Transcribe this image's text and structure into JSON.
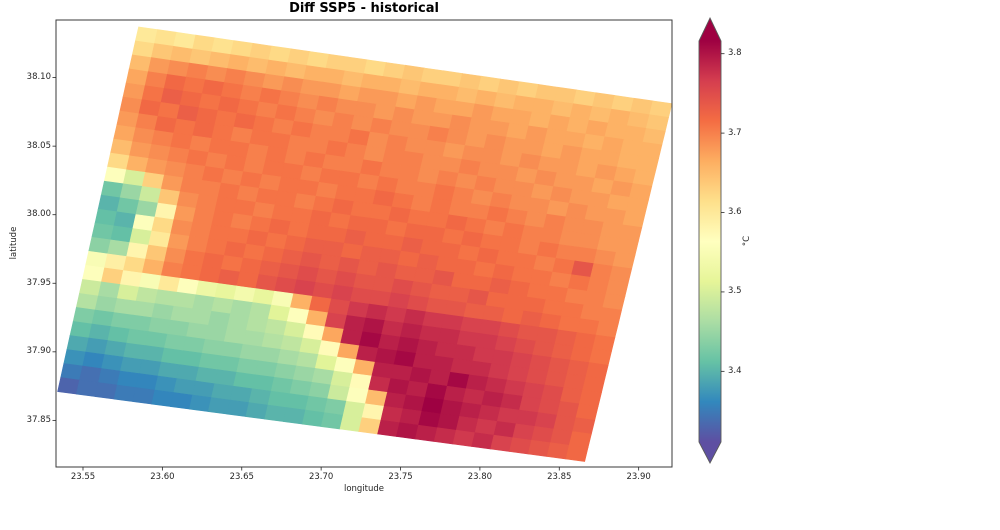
{
  "title": "Diff SSP5 - historical",
  "axes": {
    "xlabel": "longitude",
    "ylabel": "latitude",
    "x_tick_labels": [
      "23.55",
      "23.60",
      "23.65",
      "23.70",
      "23.75",
      "23.80",
      "23.85",
      "23.90"
    ],
    "y_tick_labels": [
      "38.10",
      "38.05",
      "38.00",
      "37.95",
      "37.90",
      "37.85"
    ]
  },
  "chart_data": {
    "type": "heatmap",
    "title": "Diff SSP5 - historical",
    "xlabel": "longitude",
    "ylabel": "latitude",
    "xlim": [
      23.533,
      23.921
    ],
    "ylim": [
      37.816,
      38.142
    ],
    "x_ticks": [
      23.55,
      23.6,
      23.65,
      23.7,
      23.75,
      23.8,
      23.85,
      23.9
    ],
    "y_ticks": [
      38.1,
      38.05,
      38.0,
      37.95,
      37.9,
      37.85
    ],
    "grid_on": false,
    "colorbar": {
      "label": "°C",
      "ticks": [
        3.8,
        3.7,
        3.6,
        3.5,
        3.4
      ],
      "vmin": 3.311,
      "vmax": 3.816,
      "extend": "both",
      "colormap_name": "Spectral_r",
      "colors": [
        "#5e4fa2",
        "#3288bd",
        "#66c2a5",
        "#abdda4",
        "#e6f598",
        "#ffffbf",
        "#fee08b",
        "#fdae61",
        "#f46d43",
        "#d53e4f",
        "#9e0142"
      ]
    },
    "grid": {
      "rows": 26,
      "cols": 28,
      "corners_lonlat": {
        "top_left": [
          23.585,
          38.137
        ],
        "top_right": [
          23.921,
          38.081
        ],
        "bottom_right": [
          23.866,
          37.82
        ],
        "bottom_left": [
          23.534,
          37.871
        ]
      },
      "values_degC": [
        [
          3.6,
          3.61,
          3.6,
          3.62,
          3.61,
          3.62,
          3.63,
          3.62,
          3.63,
          3.62,
          3.63,
          3.63,
          3.62,
          3.63,
          3.64,
          3.63,
          3.63,
          3.64,
          3.63,
          3.64,
          3.63,
          3.64,
          3.64,
          3.63,
          3.64,
          3.63,
          3.64,
          3.63
        ],
        [
          3.62,
          3.64,
          3.65,
          3.64,
          3.65,
          3.66,
          3.65,
          3.66,
          3.65,
          3.66,
          3.66,
          3.65,
          3.66,
          3.66,
          3.65,
          3.66,
          3.66,
          3.65,
          3.66,
          3.65,
          3.66,
          3.66,
          3.65,
          3.66,
          3.65,
          3.66,
          3.65,
          3.64
        ],
        [
          3.65,
          3.68,
          3.69,
          3.7,
          3.69,
          3.7,
          3.69,
          3.68,
          3.69,
          3.68,
          3.68,
          3.67,
          3.68,
          3.68,
          3.67,
          3.68,
          3.67,
          3.67,
          3.68,
          3.67,
          3.67,
          3.66,
          3.67,
          3.66,
          3.67,
          3.66,
          3.66,
          3.65
        ],
        [
          3.67,
          3.7,
          3.72,
          3.71,
          3.72,
          3.71,
          3.7,
          3.71,
          3.7,
          3.69,
          3.7,
          3.69,
          3.69,
          3.68,
          3.69,
          3.68,
          3.68,
          3.69,
          3.68,
          3.68,
          3.67,
          3.68,
          3.67,
          3.67,
          3.66,
          3.67,
          3.66,
          3.66
        ],
        [
          3.68,
          3.71,
          3.73,
          3.72,
          3.71,
          3.72,
          3.71,
          3.7,
          3.71,
          3.7,
          3.69,
          3.7,
          3.69,
          3.7,
          3.69,
          3.69,
          3.7,
          3.69,
          3.68,
          3.69,
          3.68,
          3.68,
          3.67,
          3.68,
          3.67,
          3.67,
          3.66,
          3.66
        ],
        [
          3.69,
          3.72,
          3.71,
          3.73,
          3.72,
          3.71,
          3.72,
          3.71,
          3.7,
          3.71,
          3.7,
          3.7,
          3.71,
          3.69,
          3.7,
          3.69,
          3.69,
          3.68,
          3.69,
          3.69,
          3.68,
          3.69,
          3.68,
          3.68,
          3.67,
          3.68,
          3.67,
          3.66
        ],
        [
          3.68,
          3.7,
          3.72,
          3.71,
          3.72,
          3.71,
          3.7,
          3.71,
          3.71,
          3.7,
          3.7,
          3.71,
          3.7,
          3.69,
          3.7,
          3.7,
          3.69,
          3.69,
          3.7,
          3.69,
          3.69,
          3.68,
          3.69,
          3.68,
          3.68,
          3.67,
          3.68,
          3.67
        ],
        [
          3.67,
          3.69,
          3.7,
          3.71,
          3.7,
          3.71,
          3.71,
          3.7,
          3.71,
          3.7,
          3.71,
          3.7,
          3.7,
          3.71,
          3.7,
          3.7,
          3.69,
          3.7,
          3.69,
          3.7,
          3.69,
          3.69,
          3.68,
          3.69,
          3.68,
          3.68,
          3.67,
          3.67
        ],
        [
          3.65,
          3.68,
          3.69,
          3.7,
          3.71,
          3.7,
          3.71,
          3.7,
          3.71,
          3.71,
          3.7,
          3.71,
          3.71,
          3.7,
          3.71,
          3.7,
          3.7,
          3.71,
          3.7,
          3.69,
          3.7,
          3.69,
          3.69,
          3.68,
          3.69,
          3.68,
          3.68,
          3.67
        ],
        [
          3.62,
          3.66,
          3.68,
          3.69,
          3.7,
          3.71,
          3.7,
          3.71,
          3.7,
          3.71,
          3.71,
          3.7,
          3.71,
          3.71,
          3.72,
          3.71,
          3.7,
          3.71,
          3.7,
          3.7,
          3.71,
          3.7,
          3.69,
          3.7,
          3.69,
          3.69,
          3.68,
          3.68
        ],
        [
          3.56,
          3.5,
          3.63,
          3.68,
          3.7,
          3.7,
          3.71,
          3.7,
          3.71,
          3.71,
          3.7,
          3.71,
          3.72,
          3.71,
          3.71,
          3.72,
          3.71,
          3.71,
          3.72,
          3.71,
          3.7,
          3.71,
          3.7,
          3.7,
          3.69,
          3.69,
          3.68,
          3.68
        ],
        [
          3.42,
          3.45,
          3.49,
          3.64,
          3.69,
          3.7,
          3.71,
          3.71,
          3.7,
          3.71,
          3.71,
          3.72,
          3.71,
          3.72,
          3.72,
          3.71,
          3.72,
          3.72,
          3.71,
          3.72,
          3.71,
          3.71,
          3.7,
          3.71,
          3.7,
          3.7,
          3.69,
          3.68
        ],
        [
          3.4,
          3.42,
          3.45,
          3.58,
          3.68,
          3.7,
          3.71,
          3.7,
          3.71,
          3.72,
          3.71,
          3.72,
          3.72,
          3.73,
          3.72,
          3.72,
          3.73,
          3.72,
          3.72,
          3.71,
          3.72,
          3.71,
          3.71,
          3.7,
          3.71,
          3.74,
          3.7,
          3.69
        ],
        [
          3.41,
          3.4,
          3.56,
          3.62,
          3.69,
          3.7,
          3.71,
          3.71,
          3.72,
          3.71,
          3.72,
          3.73,
          3.73,
          3.72,
          3.73,
          3.73,
          3.72,
          3.73,
          3.72,
          3.72,
          3.71,
          3.72,
          3.71,
          3.71,
          3.7,
          3.71,
          3.7,
          3.69
        ],
        [
          3.42,
          3.41,
          3.5,
          3.6,
          3.68,
          3.7,
          3.71,
          3.72,
          3.71,
          3.72,
          3.73,
          3.74,
          3.73,
          3.74,
          3.73,
          3.74,
          3.73,
          3.73,
          3.74,
          3.72,
          3.72,
          3.73,
          3.72,
          3.71,
          3.71,
          3.7,
          3.7,
          3.69
        ],
        [
          3.44,
          3.46,
          3.58,
          3.64,
          3.69,
          3.71,
          3.72,
          3.71,
          3.72,
          3.73,
          3.74,
          3.75,
          3.74,
          3.75,
          3.74,
          3.74,
          3.75,
          3.74,
          3.73,
          3.73,
          3.74,
          3.72,
          3.72,
          3.72,
          3.71,
          3.71,
          3.7,
          3.7
        ],
        [
          3.55,
          3.59,
          3.62,
          3.66,
          3.7,
          3.71,
          3.72,
          3.73,
          3.72,
          3.74,
          3.75,
          3.76,
          3.75,
          3.76,
          3.75,
          3.75,
          3.76,
          3.75,
          3.74,
          3.74,
          3.73,
          3.73,
          3.72,
          3.73,
          3.72,
          3.71,
          3.71,
          3.7
        ],
        [
          3.56,
          3.63,
          3.58,
          3.55,
          3.6,
          3.56,
          3.53,
          3.52,
          3.54,
          3.52,
          3.55,
          3.66,
          3.72,
          3.75,
          3.77,
          3.78,
          3.77,
          3.78,
          3.77,
          3.77,
          3.76,
          3.76,
          3.75,
          3.74,
          3.74,
          3.73,
          3.72,
          3.71
        ],
        [
          3.49,
          3.46,
          3.5,
          3.48,
          3.47,
          3.47,
          3.46,
          3.47,
          3.46,
          3.47,
          3.51,
          3.56,
          3.66,
          3.76,
          3.79,
          3.8,
          3.78,
          3.79,
          3.78,
          3.78,
          3.77,
          3.77,
          3.76,
          3.75,
          3.74,
          3.73,
          3.72,
          3.71
        ],
        [
          3.47,
          3.45,
          3.46,
          3.46,
          3.45,
          3.46,
          3.46,
          3.45,
          3.46,
          3.47,
          3.48,
          3.5,
          3.57,
          3.67,
          3.79,
          3.81,
          3.79,
          3.8,
          3.79,
          3.78,
          3.78,
          3.77,
          3.77,
          3.76,
          3.75,
          3.74,
          3.73,
          3.72
        ],
        [
          3.43,
          3.42,
          3.43,
          3.43,
          3.44,
          3.44,
          3.45,
          3.45,
          3.46,
          3.46,
          3.47,
          3.48,
          3.5,
          3.57,
          3.67,
          3.79,
          3.8,
          3.81,
          3.79,
          3.79,
          3.78,
          3.78,
          3.77,
          3.76,
          3.75,
          3.74,
          3.73,
          3.72
        ],
        [
          3.41,
          3.4,
          3.41,
          3.42,
          3.42,
          3.43,
          3.43,
          3.44,
          3.44,
          3.45,
          3.45,
          3.46,
          3.47,
          3.51,
          3.56,
          3.66,
          3.79,
          3.79,
          3.8,
          3.79,
          3.81,
          3.79,
          3.78,
          3.77,
          3.76,
          3.75,
          3.73,
          3.72
        ],
        [
          3.39,
          3.38,
          3.39,
          3.4,
          3.4,
          3.41,
          3.41,
          3.42,
          3.42,
          3.43,
          3.43,
          3.44,
          3.45,
          3.46,
          3.5,
          3.57,
          3.78,
          3.8,
          3.79,
          3.81,
          3.79,
          3.78,
          3.79,
          3.78,
          3.76,
          3.75,
          3.74,
          3.72
        ],
        [
          3.37,
          3.36,
          3.37,
          3.38,
          3.38,
          3.39,
          3.39,
          3.4,
          3.4,
          3.41,
          3.41,
          3.42,
          3.43,
          3.44,
          3.49,
          3.56,
          3.65,
          3.79,
          3.8,
          3.82,
          3.8,
          3.79,
          3.78,
          3.77,
          3.77,
          3.76,
          3.74,
          3.73
        ],
        [
          3.35,
          3.34,
          3.35,
          3.36,
          3.36,
          3.37,
          3.38,
          3.38,
          3.39,
          3.39,
          3.4,
          3.41,
          3.41,
          3.42,
          3.43,
          3.5,
          3.58,
          3.78,
          3.79,
          3.81,
          3.8,
          3.78,
          3.77,
          3.78,
          3.76,
          3.75,
          3.74,
          3.72
        ],
        [
          3.33,
          3.34,
          3.34,
          3.35,
          3.35,
          3.36,
          3.36,
          3.37,
          3.38,
          3.38,
          3.39,
          3.4,
          3.4,
          3.41,
          3.42,
          3.5,
          3.63,
          3.79,
          3.8,
          3.79,
          3.78,
          3.77,
          3.78,
          3.76,
          3.75,
          3.74,
          3.73,
          3.72
        ]
      ]
    }
  }
}
